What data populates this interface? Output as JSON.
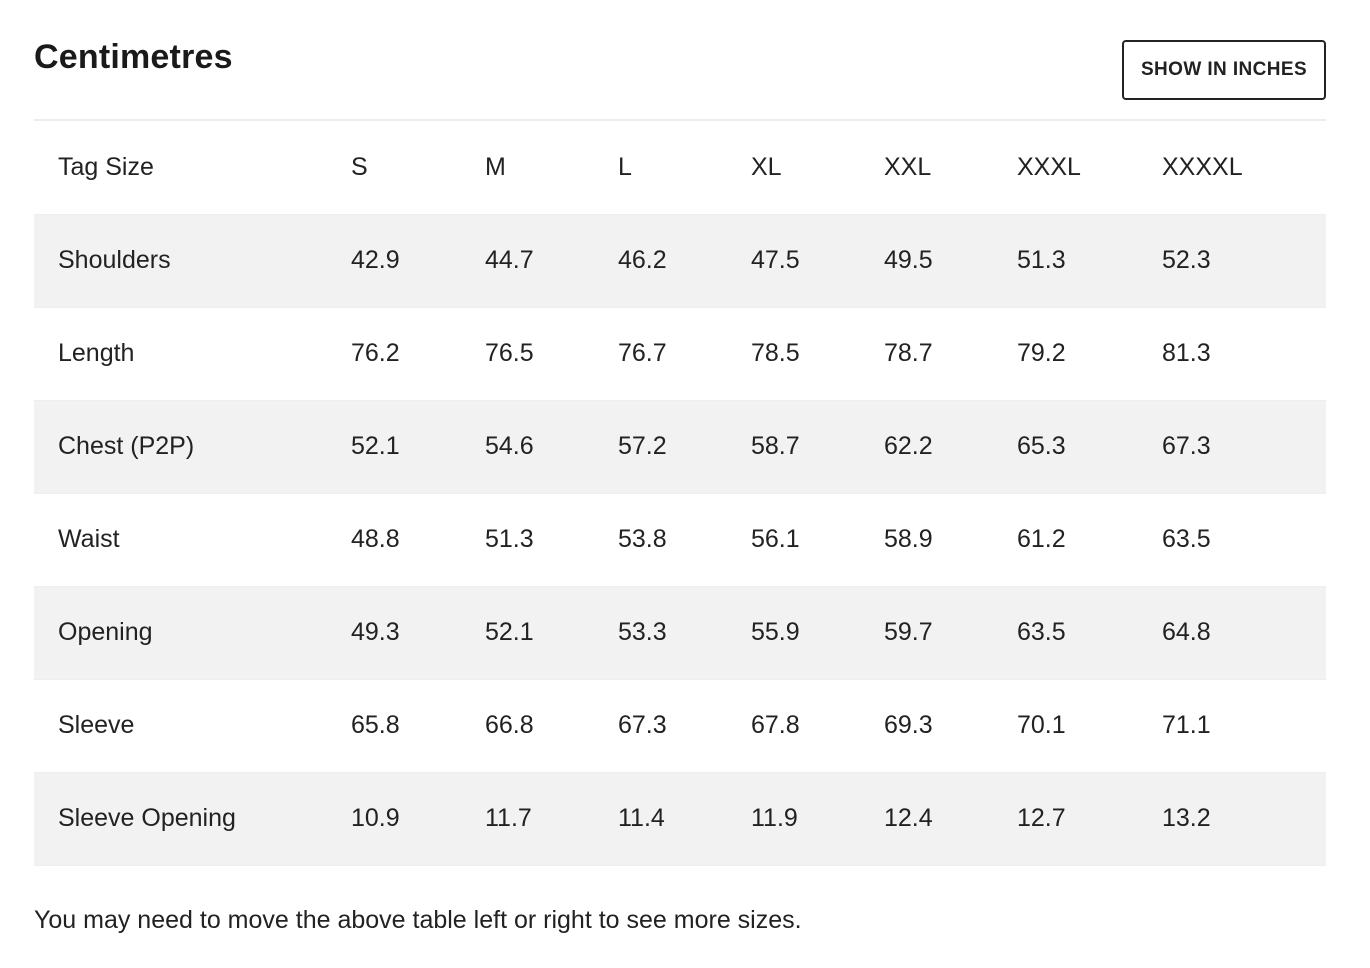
{
  "header": {
    "title": "Centimetres",
    "toggle_label": "SHOW IN INCHES"
  },
  "table": {
    "columns": [
      "Tag Size",
      "S",
      "M",
      "L",
      "XL",
      "XXL",
      "XXXL",
      "XXXXL"
    ],
    "rows": [
      {
        "label": "Shoulders",
        "values": [
          "42.9",
          "44.7",
          "46.2",
          "47.5",
          "49.5",
          "51.3",
          "52.3"
        ]
      },
      {
        "label": "Length",
        "values": [
          "76.2",
          "76.5",
          "76.7",
          "78.5",
          "78.7",
          "79.2",
          "81.3"
        ]
      },
      {
        "label": "Chest (P2P)",
        "values": [
          "52.1",
          "54.6",
          "57.2",
          "58.7",
          "62.2",
          "65.3",
          "67.3"
        ]
      },
      {
        "label": "Waist",
        "values": [
          "48.8",
          "51.3",
          "53.8",
          "56.1",
          "58.9",
          "61.2",
          "63.5"
        ]
      },
      {
        "label": "Opening",
        "values": [
          "49.3",
          "52.1",
          "53.3",
          "55.9",
          "59.7",
          "63.5",
          "64.8"
        ]
      },
      {
        "label": "Sleeve",
        "values": [
          "65.8",
          "66.8",
          "67.3",
          "67.8",
          "69.3",
          "70.1",
          "71.1"
        ]
      },
      {
        "label": "Sleeve Opening",
        "values": [
          "10.9",
          "11.7",
          "11.4",
          "11.9",
          "12.4",
          "12.7",
          "13.2"
        ]
      }
    ]
  },
  "footer": {
    "note": "You may need to move the above table left or right to see more sizes."
  },
  "colors": {
    "stripe": "#f2f2f2",
    "text": "#222222",
    "border": "#ececec"
  }
}
